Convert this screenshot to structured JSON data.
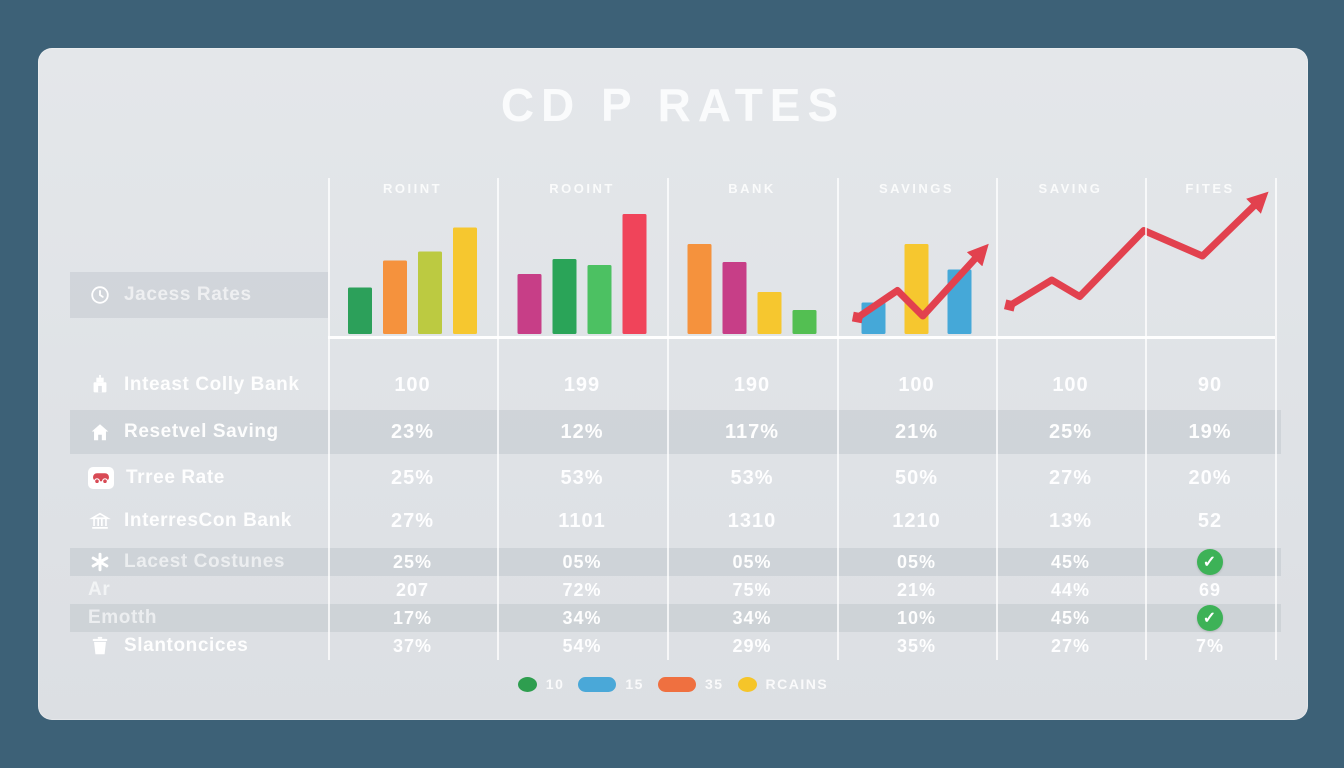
{
  "title": "CD P RATES",
  "columns": [
    "ROIINT",
    "ROOINT",
    "BANK",
    "SAVINGS",
    "SAVING",
    "FITES"
  ],
  "chart_row": {
    "label": "Jacess Rates",
    "icon": "clock-icon"
  },
  "table": {
    "rows": [
      {
        "label": "Inteast Colly Bank",
        "icon": "bank-building-icon",
        "striped": false,
        "dim": false,
        "cells": [
          "100",
          "199",
          "190",
          "100",
          "100",
          "90"
        ]
      },
      {
        "label": "Resetvel Saving",
        "icon": "house-icon",
        "striped": true,
        "dim": false,
        "cells": [
          "23%",
          "12%",
          "117%",
          "21%",
          "25%",
          "19%"
        ]
      },
      {
        "label": "Trree Rate",
        "icon": "car-icon",
        "striped": false,
        "dim": false,
        "cells": [
          "25%",
          "53%",
          "53%",
          "50%",
          "27%",
          "20%"
        ]
      },
      {
        "label": "InterresCon Bank",
        "icon": "bank-columns-icon",
        "striped": false,
        "dim": false,
        "cells": [
          "27%",
          "1101",
          "1310",
          "1210",
          "13%",
          "52"
        ]
      },
      {
        "label": "Lacest Costunes",
        "icon": "asterisk-icon",
        "striped": true,
        "dim": true,
        "cells": [
          "25%",
          "05%",
          "05%",
          "05%",
          "45%",
          "✓"
        ]
      },
      {
        "label": "Ar",
        "icon": null,
        "striped": false,
        "dim": true,
        "cells": [
          "207",
          "72%",
          "75%",
          "21%",
          "44%",
          "69"
        ]
      },
      {
        "label": "Emotth",
        "icon": null,
        "striped": true,
        "dim": true,
        "cells": [
          "17%",
          "34%",
          "34%",
          "10%",
          "45%",
          "✓"
        ]
      },
      {
        "label": "Slantoncices",
        "icon": "trash-icon",
        "striped": false,
        "dim": false,
        "cells": [
          "37%",
          "54%",
          "29%",
          "35%",
          "27%",
          "7%"
        ]
      }
    ]
  },
  "legend": {
    "items": [
      {
        "label": "10",
        "color": "#2e9e4f",
        "shape": "circle"
      },
      {
        "label": "15",
        "color": "#4aa8d8",
        "shape": "pill"
      },
      {
        "label": "35",
        "color": "#ef7040",
        "shape": "pill"
      },
      {
        "label": "RCAINS",
        "color": "#f5c529",
        "shape": "circle"
      }
    ]
  },
  "chart_data": [
    {
      "type": "bar",
      "column": "ROIINT",
      "col_index": 0,
      "values": [
        0.31,
        0.49,
        0.55,
        0.71
      ],
      "colors": [
        "#2ca05a",
        "#f5923d",
        "#bcca41",
        "#f6c72f"
      ],
      "ylim": [
        0,
        1
      ],
      "grid": false
    },
    {
      "type": "bar",
      "column": "ROOINT",
      "col_index": 1,
      "values": [
        0.4,
        0.5,
        0.46,
        0.8
      ],
      "colors": [
        "#c73e87",
        "#2aa458",
        "#4cc162",
        "#f0445a"
      ],
      "ylim": [
        0,
        1
      ],
      "grid": false
    },
    {
      "type": "bar",
      "column": "BANK",
      "col_index": 2,
      "values": [
        0.6,
        0.48,
        0.28,
        0.16
      ],
      "colors": [
        "#f5923d",
        "#c73e87",
        "#f6c72f",
        "#53bf52"
      ],
      "ylim": [
        0,
        1
      ],
      "grid": false
    },
    {
      "type": "bar+line",
      "column": "SAVINGS",
      "col_index": 3,
      "values": [
        0.21,
        0.6,
        0.43
      ],
      "colors": [
        "#45a8d8",
        "#f6c72f",
        "#45a8d8"
      ],
      "line": {
        "color": "#e2414e",
        "points": [
          [
            0.13,
            0.11
          ],
          [
            0.38,
            0.29
          ],
          [
            0.54,
            0.12
          ],
          [
            0.91,
            0.55
          ]
        ]
      },
      "ylim": [
        0,
        1
      ],
      "grid": false
    },
    {
      "type": "line",
      "column": "SAVING+FITES",
      "col_start": 4,
      "col_end": 5,
      "line": {
        "color": "#e2414e",
        "points": [
          [
            0.05,
            0.19
          ],
          [
            0.2,
            0.36
          ],
          [
            0.3,
            0.25
          ],
          [
            0.53,
            0.69
          ],
          [
            0.74,
            0.52
          ],
          [
            0.95,
            0.9
          ]
        ]
      },
      "ylim": [
        0,
        1
      ],
      "grid": false
    }
  ]
}
